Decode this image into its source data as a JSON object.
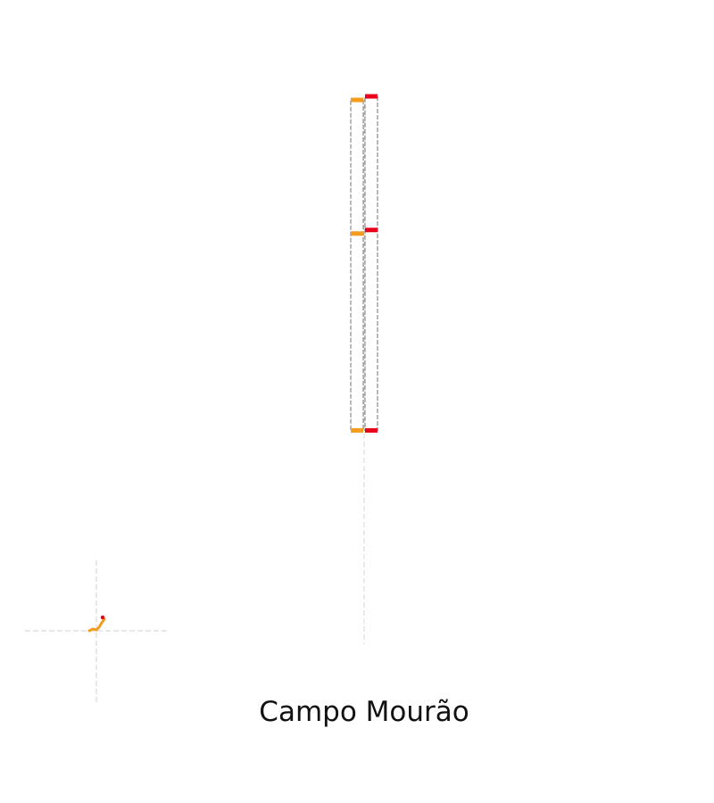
{
  "chart_data": {
    "type": "box",
    "title": "",
    "xlabel": "",
    "ylabel": "",
    "categories": [
      "Campo Mourão"
    ],
    "grid": false,
    "legend": "none",
    "axes_visible": false,
    "series": [
      {
        "color": "#F39C1D",
        "q1": 0.0,
        "median": 0.6,
        "q3": 1.0,
        "whisker_low": 0.0,
        "whisker_high": 1.0
      },
      {
        "color": "#E8001A",
        "q1": 0.0,
        "median": 0.6,
        "q3": 1.0,
        "whisker_low": 0.0,
        "whisker_high": 1.0
      }
    ],
    "ylim": [
      -0.64,
      1.0
    ],
    "inset": {
      "description_marks": [
        "orange-squiggle",
        "red-dot"
      ],
      "colors": [
        "#F39C1D",
        "#E8001A"
      ]
    }
  }
}
